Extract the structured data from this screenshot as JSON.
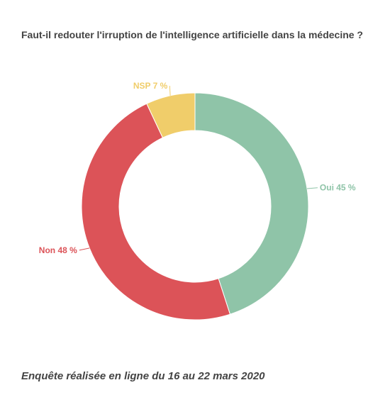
{
  "chart_data": {
    "type": "pie",
    "title": "Faut-il redouter l'irruption de l'intelligence artificielle dans la médecine ?",
    "note": "Enquête réalisée en ligne du 16 au 22 mars 2020",
    "slices": [
      {
        "label": "Oui",
        "value": 45,
        "display": "Oui 45 %",
        "color": "#8fc4a8"
      },
      {
        "label": "Non",
        "value": 48,
        "display": "Non 48 %",
        "color": "#dc5358"
      },
      {
        "label": "NSP",
        "value": 7,
        "display": "NSP 7 %",
        "color": "#f0cd6a"
      }
    ]
  }
}
